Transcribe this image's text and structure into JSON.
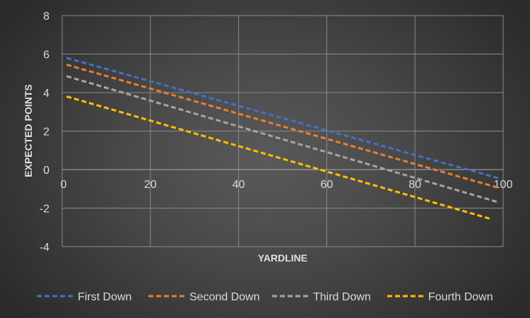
{
  "chart_data": {
    "type": "line",
    "xlabel": "YARDLINE",
    "ylabel": "EXPECTED POINTS",
    "xlim": [
      0,
      100
    ],
    "ylim": [
      -4,
      8
    ],
    "xticks": [
      0,
      20,
      40,
      60,
      80,
      100
    ],
    "yticks": [
      -4,
      -2,
      0,
      2,
      4,
      6,
      8
    ],
    "grid": true,
    "legend_position": "bottom",
    "series": [
      {
        "name": "First Down",
        "color": "#4472c4",
        "x": [
          1,
          99
        ],
        "y": [
          5.8,
          -0.45
        ]
      },
      {
        "name": "Second Down",
        "color": "#ed7d31",
        "x": [
          1,
          99
        ],
        "y": [
          5.45,
          -0.95
        ]
      },
      {
        "name": "Third Down",
        "color": "#a5a5a5",
        "x": [
          1,
          99
        ],
        "y": [
          4.85,
          -1.7
        ]
      },
      {
        "name": "Fourth Down",
        "color": "#ffc000",
        "x": [
          1,
          97
        ],
        "y": [
          3.8,
          -2.55
        ]
      }
    ]
  }
}
